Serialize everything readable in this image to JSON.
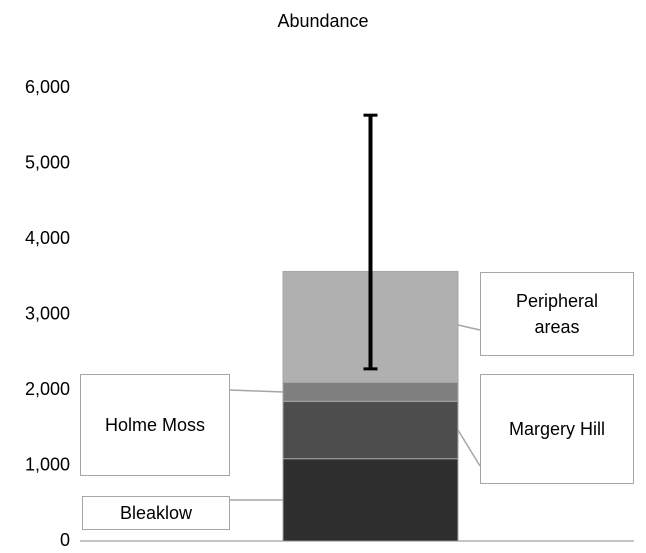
{
  "chart_data": {
    "type": "stacked_bar",
    "title": "Abundance",
    "categories": [
      null
    ],
    "series": [
      {
        "name": "Bleaklow",
        "color": "#2e2e2e",
        "values": [
          1090
        ]
      },
      {
        "name": "Margery Hill",
        "color": "#4d4d4d",
        "values": [
          760
        ]
      },
      {
        "name": "Holme Moss",
        "color": "#7f7f7f",
        "values": [
          250
        ]
      },
      {
        "name": "Peripheral areas",
        "color": "#b0b0b0",
        "values": [
          1470
        ]
      }
    ],
    "error_bar": {
      "low": 2280,
      "high": 5640
    },
    "ylim": [
      0,
      6000
    ],
    "yticks": [
      0,
      {
        "value": 1000,
        "label": "1,000"
      },
      {
        "value": 2000,
        "label": "2,000"
      },
      {
        "value": 3000,
        "label": "3,000"
      },
      {
        "value": 4000,
        "label": "4,000"
      },
      {
        "value": 5000,
        "label": "5,000"
      },
      {
        "value": 6000,
        "label": "6,000"
      }
    ],
    "grid": false
  }
}
